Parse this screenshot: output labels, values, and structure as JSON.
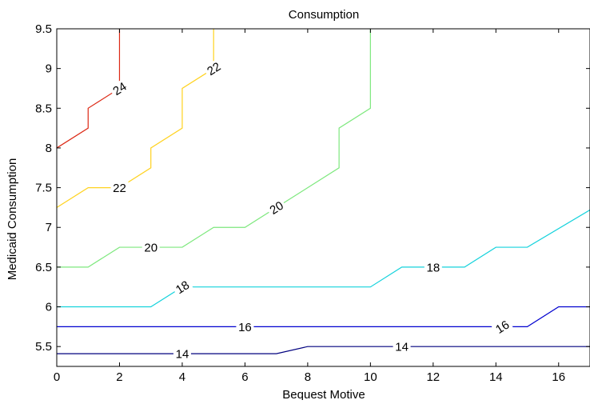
{
  "chart_data": {
    "type": "contour",
    "title": "Consumption",
    "xlabel": "Bequest Motive",
    "ylabel": "Medicaid Consumption",
    "xlim": [
      0,
      17
    ],
    "ylim": [
      5.25,
      9.5
    ],
    "xticks": [
      "0",
      "2",
      "4",
      "6",
      "8",
      "10",
      "12",
      "14",
      "16"
    ],
    "yticks": [
      "5.5",
      "6",
      "6.5",
      "7",
      "7.5",
      "8",
      "8.5",
      "9",
      "9.5"
    ],
    "grid": false,
    "contours": [
      {
        "level": 14,
        "color": "#00007f",
        "points": [
          [
            0,
            5.41
          ],
          [
            7,
            5.41
          ],
          [
            8,
            5.5
          ],
          [
            17,
            5.5
          ]
        ],
        "labels": [
          {
            "text": "14",
            "x": 4,
            "y": 5.41
          },
          {
            "text": "14",
            "x": 11,
            "y": 5.5
          }
        ]
      },
      {
        "level": 16,
        "color": "#0000cf",
        "points": [
          [
            0,
            5.75
          ],
          [
            15,
            5.75
          ],
          [
            16,
            6.0
          ],
          [
            17,
            6.0
          ]
        ],
        "labels": [
          {
            "text": "16",
            "x": 6,
            "y": 5.75
          },
          {
            "text": "16",
            "x": 14.2,
            "y": 5.75
          }
        ]
      },
      {
        "level": 18,
        "color": "#14d2dc",
        "points": [
          [
            0,
            6.0
          ],
          [
            3,
            6.0
          ],
          [
            4,
            6.25
          ],
          [
            10,
            6.25
          ],
          [
            11,
            6.5
          ],
          [
            13,
            6.5
          ],
          [
            14,
            6.75
          ],
          [
            15,
            6.75
          ],
          [
            17,
            7.22
          ]
        ],
        "labels": [
          {
            "text": "18",
            "x": 4,
            "y": 6.25
          },
          {
            "text": "18",
            "x": 12,
            "y": 6.5
          }
        ]
      },
      {
        "level": 20,
        "color": "#7de87d",
        "points": [
          [
            0,
            6.5
          ],
          [
            1,
            6.5
          ],
          [
            2,
            6.75
          ],
          [
            4,
            6.75
          ],
          [
            5,
            7.0
          ],
          [
            6,
            7.0
          ],
          [
            9,
            7.75
          ],
          [
            9,
            8.25
          ],
          [
            10,
            8.5
          ],
          [
            10,
            9.5
          ]
        ],
        "labels": [
          {
            "text": "20",
            "x": 3,
            "y": 6.75
          },
          {
            "text": "20",
            "x": 7,
            "y": 7.25
          }
        ]
      },
      {
        "level": 22,
        "color": "#ffd21e",
        "points": [
          [
            0,
            7.25
          ],
          [
            1,
            7.5
          ],
          [
            2,
            7.5
          ],
          [
            3,
            7.75
          ],
          [
            3,
            8.0
          ],
          [
            4,
            8.25
          ],
          [
            4,
            8.75
          ],
          [
            5,
            9.0
          ],
          [
            5,
            9.5
          ]
        ],
        "labels": [
          {
            "text": "22",
            "x": 2,
            "y": 7.5
          },
          {
            "text": "22",
            "x": 5,
            "y": 9.0
          }
        ]
      },
      {
        "level": 24,
        "color": "#dc2814",
        "points": [
          [
            0,
            8.0
          ],
          [
            1,
            8.25
          ],
          [
            1,
            8.5
          ],
          [
            2,
            8.75
          ],
          [
            2,
            9.5
          ]
        ],
        "labels": [
          {
            "text": "24",
            "x": 2,
            "y": 8.75
          }
        ]
      }
    ]
  }
}
